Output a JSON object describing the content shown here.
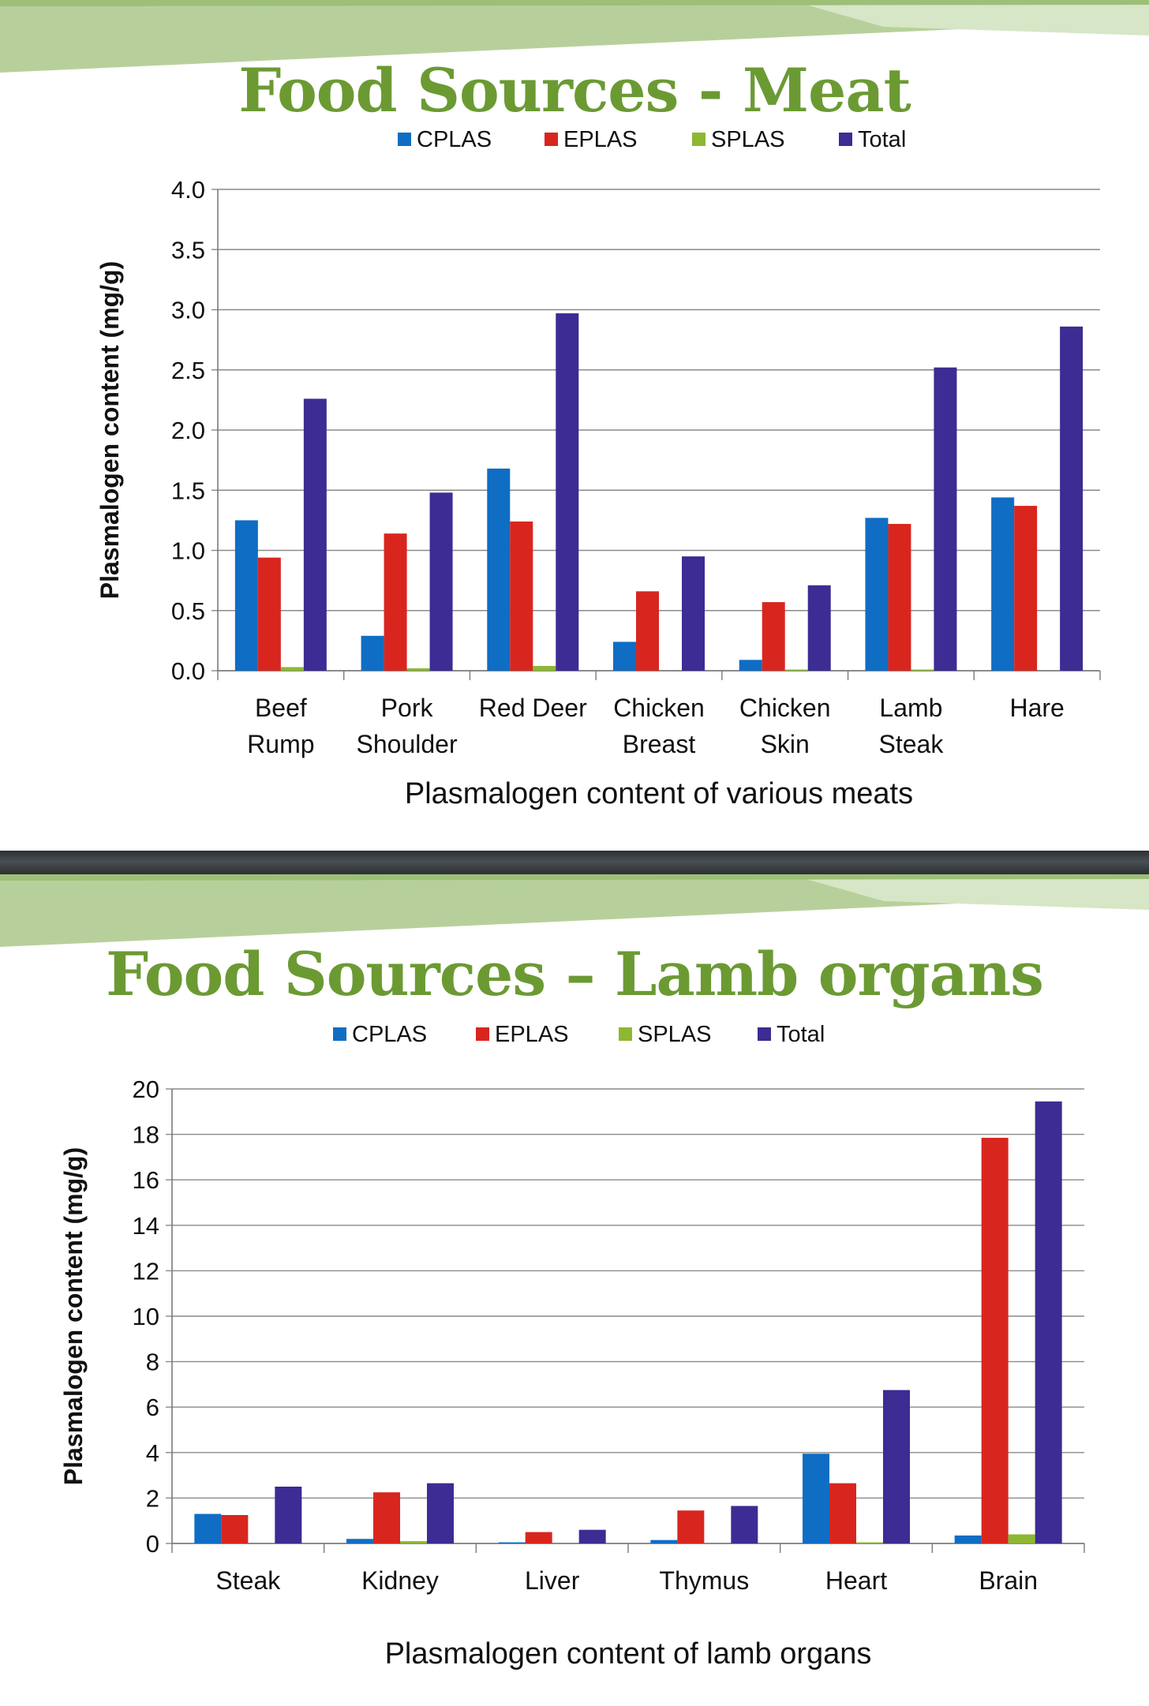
{
  "slides": [
    {
      "title": "Food Sources - Meat",
      "chart_data": {
        "type": "bar",
        "categories": [
          [
            "Beef",
            "Rump"
          ],
          [
            "Pork",
            "Shoulder"
          ],
          [
            "Red Deer"
          ],
          [
            "Chicken",
            "Breast"
          ],
          [
            "Chicken",
            "Skin"
          ],
          [
            "Lamb",
            "Steak"
          ],
          [
            "Hare"
          ]
        ],
        "series": [
          {
            "name": "CPLAS",
            "values": [
              1.25,
              0.29,
              1.68,
              0.24,
              0.09,
              1.27,
              1.44
            ]
          },
          {
            "name": "EPLAS",
            "values": [
              0.94,
              1.14,
              1.24,
              0.66,
              0.57,
              1.22,
              1.37
            ]
          },
          {
            "name": "SPLAS",
            "values": [
              0.03,
              0.02,
              0.04,
              0.0,
              0.01,
              0.01,
              0.0
            ]
          },
          {
            "name": "Total",
            "values": [
              2.26,
              1.48,
              2.97,
              0.95,
              0.71,
              2.52,
              2.86
            ]
          }
        ],
        "colors": [
          "#0f6dc4",
          "#d8261f",
          "#8cb832",
          "#3c2c93"
        ],
        "ylim": [
          0,
          4.0
        ],
        "yticks": [
          "0.0",
          "0.5",
          "1.0",
          "1.5",
          "2.0",
          "2.5",
          "3.0",
          "3.5",
          "4.0"
        ],
        "ylabel": "Plasmalogen content (mg/g)",
        "xlabel": "Plasmalogen content of various meats",
        "legend_position": "top",
        "grid": true
      }
    },
    {
      "title": "Food Sources – Lamb organs",
      "chart_data": {
        "type": "bar",
        "categories": [
          [
            "Steak"
          ],
          [
            "Kidney"
          ],
          [
            "Liver"
          ],
          [
            "Thymus"
          ],
          [
            "Heart"
          ],
          [
            "Brain"
          ]
        ],
        "series": [
          {
            "name": "CPLAS",
            "values": [
              1.3,
              0.2,
              0.05,
              0.15,
              3.95,
              0.35
            ]
          },
          {
            "name": "EPLAS",
            "values": [
              1.25,
              2.25,
              0.5,
              1.45,
              2.65,
              17.85
            ]
          },
          {
            "name": "SPLAS",
            "values": [
              0.0,
              0.1,
              0.0,
              0.0,
              0.05,
              0.4
            ]
          },
          {
            "name": "Total",
            "values": [
              2.5,
              2.65,
              0.6,
              1.65,
              6.75,
              19.45
            ]
          }
        ],
        "colors": [
          "#0f6dc4",
          "#d8261f",
          "#8cb832",
          "#3c2c93"
        ],
        "ylim": [
          0,
          20
        ],
        "yticks": [
          "0",
          "2",
          "4",
          "6",
          "8",
          "10",
          "12",
          "14",
          "16",
          "18",
          "20"
        ],
        "ylabel": "Plasmalogen content (mg/g)",
        "xlabel": "Plasmalogen content of lamb organs",
        "legend_position": "top",
        "grid": true
      }
    }
  ]
}
